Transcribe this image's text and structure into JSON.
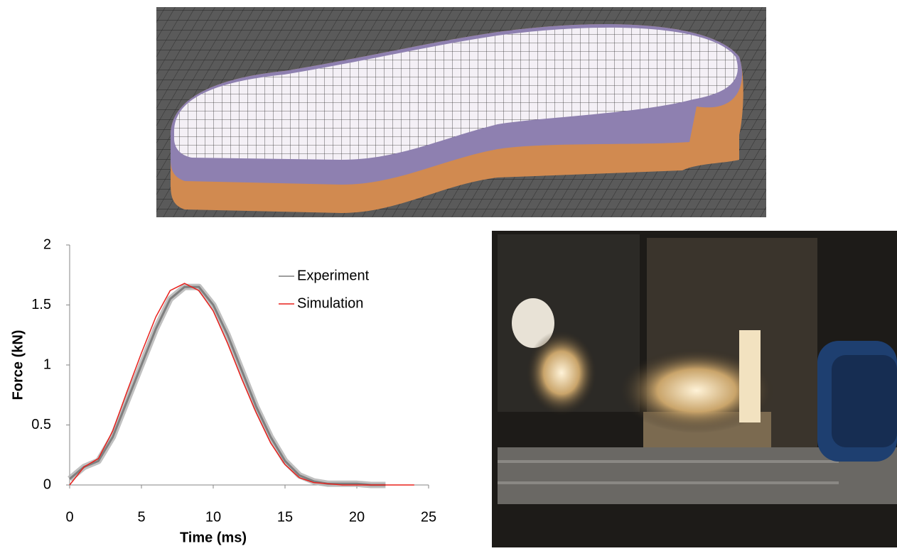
{
  "chart_data": {
    "type": "line",
    "x": [
      0,
      1,
      2,
      3,
      4,
      5,
      6,
      7,
      8,
      9,
      10,
      11,
      12,
      13,
      14,
      15,
      16,
      17,
      18,
      19,
      20,
      21,
      22,
      23,
      24
    ],
    "series": [
      {
        "name": "Experiment",
        "color": "#7f7f7f",
        "values": [
          0.05,
          0.15,
          0.2,
          0.4,
          0.7,
          1.0,
          1.3,
          1.55,
          1.65,
          1.65,
          1.5,
          1.25,
          0.95,
          0.65,
          0.4,
          0.2,
          0.08,
          0.03,
          0.01,
          0.01,
          0.01,
          0,
          0,
          null,
          null
        ]
      },
      {
        "name": "Simulation",
        "color": "#e8201c",
        "values": [
          0,
          0.15,
          0.22,
          0.45,
          0.78,
          1.1,
          1.4,
          1.62,
          1.68,
          1.62,
          1.45,
          1.18,
          0.88,
          0.6,
          0.35,
          0.17,
          0.06,
          0.02,
          0.01,
          0,
          0,
          0,
          0,
          0,
          0
        ]
      }
    ],
    "x_label": "Time (ms)",
    "y_label": "Force  (kN)",
    "xlim": [
      0,
      25
    ],
    "xticks": [
      0,
      5,
      10,
      15,
      20,
      25
    ],
    "ylim": [
      0,
      2
    ],
    "yticks": [
      0,
      0.5,
      1,
      1.5,
      2
    ],
    "grid": false,
    "legend": "upper right"
  }
}
